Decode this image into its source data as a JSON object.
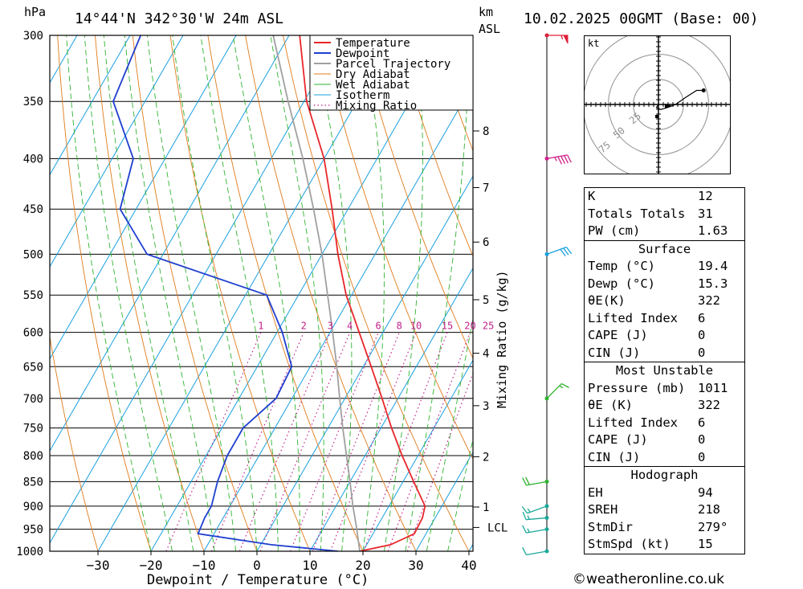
{
  "header": {
    "p_unit": "hPa",
    "location": "14°44'N 342°30'W 24m ASL",
    "km_label": "km",
    "asl_label": "ASL",
    "datetime": "10.02.2025 00GMT (Base: 00)"
  },
  "chart_data": {
    "type": "line",
    "xlabel": "Dewpoint / Temperature (°C)",
    "ylabel": "hPa",
    "xlim": [
      -40,
      40
    ],
    "ylim": [
      1000,
      300
    ],
    "x_ticks": [
      -30,
      -20,
      -10,
      0,
      10,
      20,
      30,
      40
    ],
    "pressure_levels": [
      300,
      350,
      400,
      450,
      500,
      550,
      600,
      650,
      700,
      750,
      800,
      850,
      900,
      950,
      1000
    ],
    "km_ticks": [
      {
        "label": "8",
        "p": 375
      },
      {
        "label": "7",
        "p": 428
      },
      {
        "label": "6",
        "p": 486
      },
      {
        "label": "5",
        "p": 556
      },
      {
        "label": "4",
        "p": 630
      },
      {
        "label": "3",
        "p": 712
      },
      {
        "label": "2",
        "p": 802
      },
      {
        "label": "1",
        "p": 902
      },
      {
        "label": "LCL",
        "p": 946
      }
    ],
    "mixing_ratio_axis_label": "Mixing Ratio (g/kg)",
    "mixing_ratio_labels": [
      "1",
      "2",
      "3",
      "4",
      "6",
      "8",
      "10",
      "15",
      "20",
      "25"
    ],
    "mixing_ratio_values": [
      1,
      2,
      3,
      4,
      6,
      8,
      10,
      15,
      20,
      25
    ],
    "legend": [
      "Temperature",
      "Dewpoint",
      "Parcel Trajectory",
      "Dry Adiabat",
      "Wet Adiabat",
      "Isotherm",
      "Mixing Ratio"
    ],
    "legend_placement": "top-right",
    "series": [
      {
        "name": "Temperature",
        "color": "#e8262a",
        "points": [
          [
            1000,
            19.4
          ],
          [
            985,
            24.5
          ],
          [
            960,
            27.8
          ],
          [
            925,
            27.6
          ],
          [
            900,
            26.8
          ],
          [
            850,
            22
          ],
          [
            800,
            17
          ],
          [
            750,
            12
          ],
          [
            700,
            7
          ],
          [
            650,
            1.5
          ],
          [
            600,
            -4.5
          ],
          [
            550,
            -11
          ],
          [
            500,
            -17
          ],
          [
            450,
            -23
          ],
          [
            400,
            -30
          ],
          [
            350,
            -39.5
          ],
          [
            300,
            -48
          ]
        ]
      },
      {
        "name": "Dewpoint",
        "color": "#1e3fcf",
        "points": [
          [
            1000,
            15.3
          ],
          [
            985,
            2
          ],
          [
            960,
            -13
          ],
          [
            925,
            -13.5
          ],
          [
            900,
            -13.5
          ],
          [
            850,
            -15
          ],
          [
            800,
            -16
          ],
          [
            750,
            -16
          ],
          [
            700,
            -13
          ],
          [
            650,
            -13.5
          ],
          [
            600,
            -19
          ],
          [
            550,
            -26
          ],
          [
            500,
            -53
          ],
          [
            450,
            -63
          ],
          [
            400,
            -66
          ],
          [
            350,
            -76
          ],
          [
            300,
            -78
          ]
        ]
      },
      {
        "name": "Parcel Trajectory",
        "color": "#a0a0a0",
        "points": [
          [
            1000,
            19.4
          ],
          [
            946,
            16.2
          ],
          [
            900,
            13.2
          ],
          [
            850,
            10
          ],
          [
            800,
            6.5
          ],
          [
            750,
            2.8
          ],
          [
            700,
            -1
          ],
          [
            650,
            -5
          ],
          [
            600,
            -9.5
          ],
          [
            550,
            -14.5
          ],
          [
            500,
            -20
          ],
          [
            450,
            -26.5
          ],
          [
            400,
            -34
          ],
          [
            350,
            -43
          ],
          [
            300,
            -53
          ]
        ]
      }
    ],
    "wind_barbs": [
      {
        "p": 300,
        "dir": 270,
        "spd": 55
      },
      {
        "p": 400,
        "dir": 260,
        "spd": 45
      },
      {
        "p": 500,
        "dir": 250,
        "spd": 30
      },
      {
        "p": 700,
        "dir": 225,
        "spd": 15
      },
      {
        "p": 850,
        "dir": 80,
        "spd": 20
      },
      {
        "p": 900,
        "dir": 70,
        "spd": 15
      },
      {
        "p": 925,
        "dir": 85,
        "spd": 15
      },
      {
        "p": 950,
        "dir": 80,
        "spd": 15
      },
      {
        "p": 1000,
        "dir": 80,
        "spd": 10
      }
    ]
  },
  "hodograph": {
    "unit_label": "kt",
    "ring_labels": [
      "25",
      "50",
      "75"
    ],
    "trace": [
      [
        0,
        0
      ],
      [
        -2,
        -3
      ],
      [
        2,
        -5
      ],
      [
        9,
        -3
      ],
      [
        17,
        0
      ],
      [
        27,
        7
      ],
      [
        38,
        14
      ],
      [
        45,
        14
      ]
    ]
  },
  "indices": {
    "k_label": "K",
    "k_value": "12",
    "tt_label": "Totals Totals",
    "tt_value": "31",
    "pw_label": "PW (cm)",
    "pw_value": "1.63"
  },
  "surface": {
    "title": "Surface",
    "rows": [
      {
        "label": "Temp (°C)",
        "value": "19.4"
      },
      {
        "label": "Dewp (°C)",
        "value": "15.3"
      },
      {
        "label": "θE(K)",
        "value": "322"
      },
      {
        "label": "Lifted Index",
        "value": "6"
      },
      {
        "label": "CAPE (J)",
        "value": "0"
      },
      {
        "label": "CIN (J)",
        "value": "0"
      }
    ]
  },
  "most_unstable": {
    "title": "Most Unstable",
    "rows": [
      {
        "label": "Pressure (mb)",
        "value": "1011"
      },
      {
        "label": "θE (K)",
        "value": "322"
      },
      {
        "label": "Lifted Index",
        "value": "6"
      },
      {
        "label": "CAPE (J)",
        "value": "0"
      },
      {
        "label": "CIN (J)",
        "value": "0"
      }
    ]
  },
  "hodograph_stats": {
    "title": "Hodograph",
    "rows": [
      {
        "label": "EH",
        "value": "94"
      },
      {
        "label": "SREH",
        "value": "218"
      },
      {
        "label": "StmDir",
        "value": "279°"
      },
      {
        "label": "StmSpd (kt)",
        "value": "15"
      }
    ]
  },
  "footer": "©weatheronline.co.uk",
  "colors": {
    "temperature": "#e8262a",
    "dewpoint": "#1e3fcf",
    "parcel": "#a0a0a0",
    "dry_adiabat": "#e07b1a",
    "wet_adiabat": "#2fb32f",
    "isotherm": "#19a0e0",
    "mixing_ratio": "#c0208a"
  }
}
